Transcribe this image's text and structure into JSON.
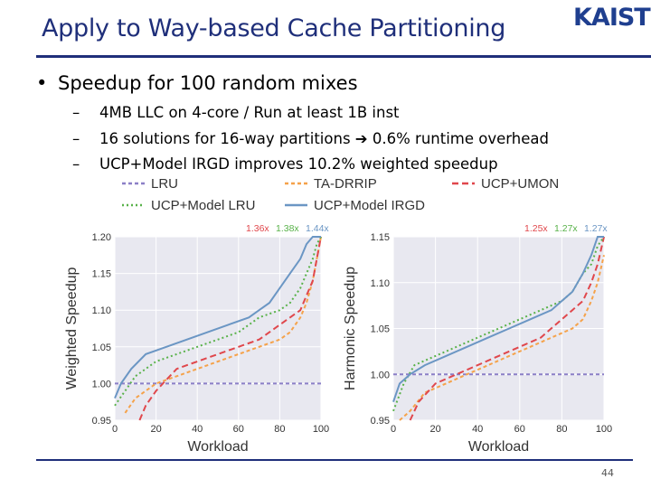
{
  "slide": {
    "title": "Apply to Way-based Cache Partitioning",
    "logo": "KAIST",
    "bullet": "Speedup for 100 random mixes",
    "sub_bullets": [
      "4MB LLC on 4-core / Run at least 1B inst",
      "16 solutions for 16-way partitions",
      "0.6% runtime overhead",
      "UCP+Model IRGD improves 10.2% weighted speedup"
    ],
    "page_number": "44"
  },
  "legend": [
    {
      "name": "LRU",
      "color": "#8b7fc7",
      "dash": "4,3"
    },
    {
      "name": "TA-DRRIP",
      "color": "#f5a24a",
      "dash": "4,3"
    },
    {
      "name": "UCP+UMON",
      "color": "#e0474c",
      "dash": "7,4"
    },
    {
      "name": "UCP+Model LRU",
      "color": "#59b24a",
      "dash": "2,3"
    },
    {
      "name": "UCP+Model IRGD",
      "color": "#6b96c4",
      "dash": ""
    }
  ],
  "chart_data": [
    {
      "type": "line",
      "xlabel": "Workload",
      "ylabel": "Weighted Speedup",
      "xlim": [
        0,
        100
      ],
      "ylim": [
        0.95,
        1.2
      ],
      "xticks": [
        "0",
        "20",
        "40",
        "60",
        "80",
        "100"
      ],
      "yticks": [
        "0.95",
        "1.00",
        "1.05",
        "1.10",
        "1.15",
        "1.20"
      ],
      "annotations": [
        {
          "text": "1.36x",
          "color": "#e0474c"
        },
        {
          "text": "1.38x",
          "color": "#59b24a"
        },
        {
          "text": "1.44x",
          "color": "#6b96c4"
        }
      ],
      "series": [
        {
          "name": "LRU",
          "x": [
            0,
            100
          ],
          "y": [
            1.0,
            1.0
          ]
        },
        {
          "name": "TA-DRRIP",
          "x": [
            5,
            10,
            20,
            30,
            40,
            50,
            60,
            70,
            80,
            85,
            90,
            93,
            96,
            98,
            100
          ],
          "y": [
            0.96,
            0.98,
            1.0,
            1.01,
            1.02,
            1.03,
            1.04,
            1.05,
            1.06,
            1.07,
            1.09,
            1.11,
            1.14,
            1.17,
            1.2
          ]
        },
        {
          "name": "UCP+UMON",
          "x": [
            12,
            15,
            20,
            30,
            40,
            50,
            60,
            70,
            75,
            80,
            85,
            90,
            93,
            96,
            98,
            100
          ],
          "y": [
            0.95,
            0.97,
            0.99,
            1.02,
            1.03,
            1.04,
            1.05,
            1.06,
            1.07,
            1.08,
            1.09,
            1.1,
            1.12,
            1.14,
            1.17,
            1.2
          ]
        },
        {
          "name": "UCP+Model LRU",
          "x": [
            0,
            5,
            10,
            20,
            30,
            40,
            50,
            60,
            70,
            80,
            85,
            90,
            93,
            96,
            98,
            100
          ],
          "y": [
            0.97,
            0.99,
            1.01,
            1.03,
            1.04,
            1.05,
            1.06,
            1.07,
            1.09,
            1.1,
            1.11,
            1.13,
            1.15,
            1.17,
            1.19,
            1.2
          ]
        },
        {
          "name": "UCP+Model IRGD",
          "x": [
            0,
            3,
            8,
            15,
            25,
            35,
            45,
            55,
            65,
            70,
            75,
            80,
            85,
            90,
            93,
            96,
            100
          ],
          "y": [
            0.98,
            1.0,
            1.02,
            1.04,
            1.05,
            1.06,
            1.07,
            1.08,
            1.09,
            1.1,
            1.11,
            1.13,
            1.15,
            1.17,
            1.19,
            1.2,
            1.2
          ]
        }
      ]
    },
    {
      "type": "line",
      "xlabel": "Workload",
      "ylabel": "Harmonic Speedup",
      "xlim": [
        0,
        100
      ],
      "ylim": [
        0.95,
        1.15
      ],
      "xticks": [
        "0",
        "20",
        "40",
        "60",
        "80",
        "100"
      ],
      "yticks": [
        "0.95",
        "1.00",
        "1.05",
        "1.10",
        "1.15"
      ],
      "annotations": [
        {
          "text": "1.25x",
          "color": "#e0474c"
        },
        {
          "text": "1.27x",
          "color": "#59b24a"
        },
        {
          "text": "1.27x",
          "color": "#6b96c4"
        }
      ],
      "series": [
        {
          "name": "LRU",
          "x": [
            0,
            100
          ],
          "y": [
            1.0,
            1.0
          ]
        },
        {
          "name": "TA-DRRIP",
          "x": [
            3,
            8,
            15,
            25,
            35,
            45,
            55,
            65,
            75,
            85,
            90,
            94,
            97,
            100
          ],
          "y": [
            0.95,
            0.96,
            0.98,
            0.99,
            1.0,
            1.01,
            1.02,
            1.03,
            1.04,
            1.05,
            1.06,
            1.08,
            1.1,
            1.13
          ]
        },
        {
          "name": "UCP+UMON",
          "x": [
            8,
            12,
            20,
            30,
            40,
            50,
            60,
            70,
            80,
            85,
            90,
            94,
            97,
            100
          ],
          "y": [
            0.95,
            0.97,
            0.99,
            1.0,
            1.01,
            1.02,
            1.03,
            1.04,
            1.06,
            1.07,
            1.08,
            1.1,
            1.12,
            1.15
          ]
        },
        {
          "name": "UCP+Model LRU",
          "x": [
            0,
            5,
            10,
            20,
            30,
            40,
            50,
            60,
            70,
            80,
            85,
            90,
            94,
            97,
            100
          ],
          "y": [
            0.96,
            0.99,
            1.01,
            1.02,
            1.03,
            1.04,
            1.05,
            1.06,
            1.07,
            1.08,
            1.09,
            1.11,
            1.12,
            1.14,
            1.15
          ]
        },
        {
          "name": "UCP+Model IRGD",
          "x": [
            0,
            3,
            8,
            15,
            25,
            35,
            45,
            55,
            65,
            75,
            80,
            85,
            90,
            94,
            97,
            100
          ],
          "y": [
            0.97,
            0.99,
            1.0,
            1.01,
            1.02,
            1.03,
            1.04,
            1.05,
            1.06,
            1.07,
            1.08,
            1.09,
            1.11,
            1.13,
            1.15,
            1.15
          ]
        }
      ]
    }
  ]
}
